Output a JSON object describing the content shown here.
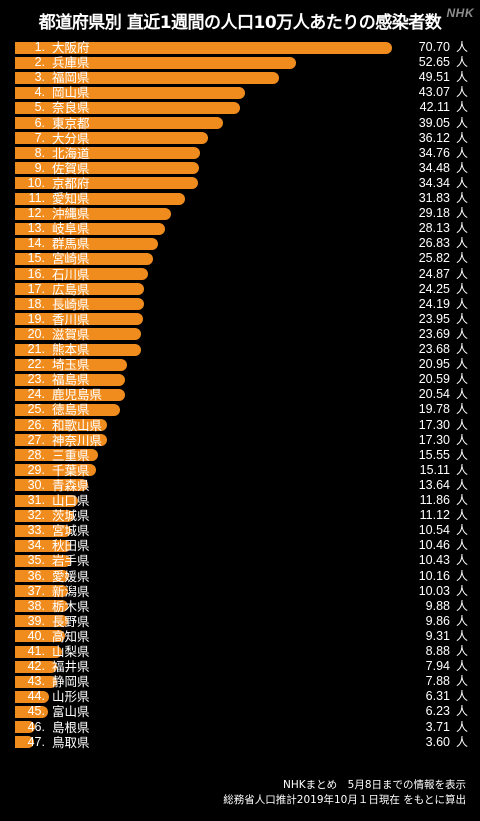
{
  "title": "都道府県別 直近1週間の人口10万人あたりの感染者数",
  "logo": "NHK",
  "footer": {
    "line1": "NHKまとめ　5月8日までの情報を表示",
    "line2": "総務省人口推計2019年10月１日現在 をもとに算出"
  },
  "colors": {
    "bar": "#f08c1e",
    "background": "#000000",
    "text": "#ffffff"
  },
  "chart_data": {
    "type": "bar",
    "orientation": "horizontal",
    "unit": "人",
    "xlim": [
      0,
      70.7
    ],
    "ranks": [
      "1.",
      "2.",
      "3.",
      "4.",
      "5.",
      "6.",
      "7.",
      "8.",
      "9.",
      "10.",
      "11.",
      "12.",
      "13.",
      "14.",
      "15.",
      "16.",
      "17.",
      "18.",
      "19.",
      "20.",
      "21.",
      "22.",
      "23.",
      "24.",
      "25.",
      "26.",
      "27.",
      "28.",
      "29.",
      "30.",
      "31.",
      "32.",
      "33.",
      "34.",
      "35.",
      "36.",
      "37.",
      "38.",
      "39.",
      "40.",
      "41.",
      "42.",
      "43.",
      "44.",
      "45.",
      "46.",
      "47."
    ],
    "categories": [
      "大阪府",
      "兵庫県",
      "福岡県",
      "岡山県",
      "奈良県",
      "東京都",
      "大分県",
      "北海道",
      "佐賀県",
      "京都府",
      "愛知県",
      "沖縄県",
      "岐阜県",
      "群馬県",
      "宮崎県",
      "石川県",
      "広島県",
      "長崎県",
      "香川県",
      "滋賀県",
      "熊本県",
      "埼玉県",
      "福島県",
      "鹿児島県",
      "徳島県",
      "和歌山県",
      "神奈川県",
      "三重県",
      "千葉県",
      "青森県",
      "山口県",
      "茨城県",
      "宮城県",
      "秋田県",
      "岩手県",
      "愛媛県",
      "新潟県",
      "栃木県",
      "長野県",
      "高知県",
      "山梨県",
      "福井県",
      "静岡県",
      "山形県",
      "富山県",
      "島根県",
      "鳥取県"
    ],
    "values": [
      70.7,
      52.65,
      49.51,
      43.07,
      42.11,
      39.05,
      36.12,
      34.76,
      34.48,
      34.34,
      31.83,
      29.18,
      28.13,
      26.83,
      25.82,
      24.87,
      24.25,
      24.19,
      23.95,
      23.69,
      23.68,
      20.95,
      20.59,
      20.54,
      19.78,
      17.3,
      17.3,
      15.55,
      15.11,
      13.64,
      11.86,
      11.12,
      10.54,
      10.46,
      10.43,
      10.16,
      10.03,
      9.88,
      9.86,
      9.31,
      8.88,
      7.94,
      7.88,
      6.31,
      6.23,
      3.71,
      3.6
    ],
    "value_labels": [
      "70.70",
      "52.65",
      "49.51",
      "43.07",
      "42.11",
      "39.05",
      "36.12",
      "34.76",
      "34.48",
      "34.34",
      "31.83",
      "29.18",
      "28.13",
      "26.83",
      "25.82",
      "24.87",
      "24.25",
      "24.19",
      "23.95",
      "23.69",
      "23.68",
      "20.95",
      "20.59",
      "20.54",
      "19.78",
      "17.30",
      "17.30",
      "15.55",
      "15.11",
      "13.64",
      "11.86",
      "11.12",
      "10.54",
      "10.46",
      "10.43",
      "10.16",
      "10.03",
      "9.88",
      "9.86",
      "9.31",
      "8.88",
      "7.94",
      "7.88",
      "6.31",
      "6.23",
      "3.71",
      "3.60"
    ]
  }
}
